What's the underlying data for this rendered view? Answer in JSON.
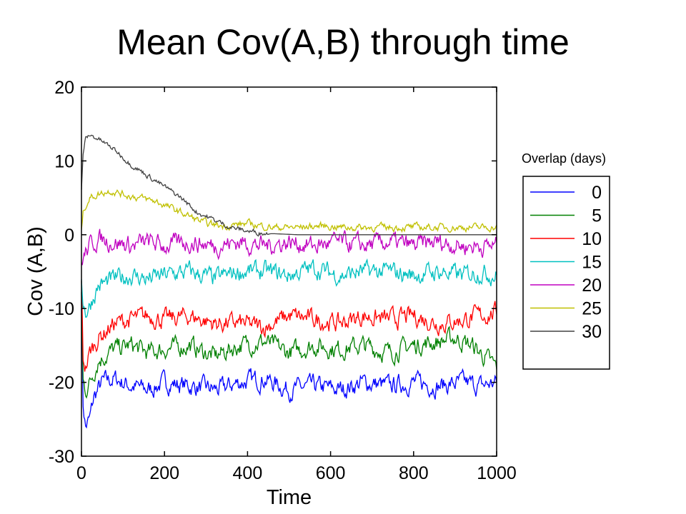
{
  "slide": {
    "title": "Mean Cov(A,B) through time"
  },
  "legend_title": "Overlap (days)",
  "chart_data": {
    "type": "line",
    "title": "",
    "xlabel": "Time",
    "ylabel": "Cov (A,B)",
    "xlim": [
      0,
      1000
    ],
    "ylim": [
      -30,
      20
    ],
    "xticks": [
      0,
      200,
      400,
      600,
      800,
      1000
    ],
    "yticks": [
      20,
      10,
      0,
      -10,
      -20,
      -30
    ],
    "grid": false,
    "legend_position": "outside-right",
    "series": [
      {
        "name": "0",
        "color": "#0000ff",
        "points": [
          [
            0,
            -9
          ],
          [
            4,
            -23
          ],
          [
            10,
            -26
          ],
          [
            20,
            -25
          ],
          [
            30,
            -22
          ],
          [
            50,
            -20
          ],
          [
            80,
            -19.5
          ],
          [
            120,
            -20.5
          ],
          [
            160,
            -21
          ],
          [
            200,
            -20
          ],
          [
            260,
            -20.5
          ],
          [
            330,
            -21
          ],
          [
            380,
            -20
          ],
          [
            440,
            -19.5
          ],
          [
            500,
            -21
          ],
          [
            560,
            -20.5
          ],
          [
            620,
            -21
          ],
          [
            680,
            -20
          ],
          [
            740,
            -20.5
          ],
          [
            800,
            -20
          ],
          [
            860,
            -20.5
          ],
          [
            920,
            -20
          ],
          [
            960,
            -20.5
          ],
          [
            1000,
            -20
          ]
        ]
      },
      {
        "name": "5",
        "color": "#008000",
        "points": [
          [
            0,
            -8
          ],
          [
            4,
            -20
          ],
          [
            10,
            -21
          ],
          [
            20,
            -20
          ],
          [
            40,
            -17
          ],
          [
            80,
            -15.5
          ],
          [
            120,
            -15
          ],
          [
            160,
            -16
          ],
          [
            200,
            -15.5
          ],
          [
            260,
            -15
          ],
          [
            320,
            -16.5
          ],
          [
            380,
            -15
          ],
          [
            440,
            -14.5
          ],
          [
            500,
            -16
          ],
          [
            560,
            -15
          ],
          [
            620,
            -15.5
          ],
          [
            680,
            -15
          ],
          [
            740,
            -16
          ],
          [
            800,
            -15
          ],
          [
            860,
            -14.5
          ],
          [
            900,
            -14
          ],
          [
            940,
            -15
          ],
          [
            980,
            -17
          ],
          [
            1000,
            -18
          ]
        ]
      },
      {
        "name": "10",
        "color": "#ff0000",
        "points": [
          [
            0,
            -7
          ],
          [
            4,
            -17
          ],
          [
            10,
            -18
          ],
          [
            20,
            -16
          ],
          [
            40,
            -14
          ],
          [
            80,
            -12
          ],
          [
            120,
            -11.5
          ],
          [
            160,
            -11
          ],
          [
            200,
            -11.5
          ],
          [
            260,
            -11
          ],
          [
            320,
            -12
          ],
          [
            380,
            -12
          ],
          [
            440,
            -12.5
          ],
          [
            500,
            -11
          ],
          [
            560,
            -11.5
          ],
          [
            620,
            -12
          ],
          [
            680,
            -11
          ],
          [
            740,
            -11.5
          ],
          [
            800,
            -11
          ],
          [
            860,
            -12
          ],
          [
            920,
            -11.5
          ],
          [
            960,
            -11
          ],
          [
            1000,
            -10.5
          ]
        ]
      },
      {
        "name": "15",
        "color": "#00c0c0",
        "points": [
          [
            0,
            -6
          ],
          [
            4,
            -9
          ],
          [
            10,
            -10.5
          ],
          [
            20,
            -9.5
          ],
          [
            40,
            -7
          ],
          [
            80,
            -6
          ],
          [
            120,
            -5.5
          ],
          [
            160,
            -6
          ],
          [
            200,
            -5.5
          ],
          [
            260,
            -5
          ],
          [
            320,
            -6
          ],
          [
            380,
            -5
          ],
          [
            440,
            -5
          ],
          [
            500,
            -5.5
          ],
          [
            560,
            -4.5
          ],
          [
            620,
            -5.5
          ],
          [
            680,
            -5
          ],
          [
            740,
            -5
          ],
          [
            800,
            -5.5
          ],
          [
            860,
            -5
          ],
          [
            920,
            -5.5
          ],
          [
            960,
            -5
          ],
          [
            1000,
            -5.5
          ]
        ]
      },
      {
        "name": "20",
        "color": "#c000c0",
        "points": [
          [
            0,
            -4
          ],
          [
            4,
            -3
          ],
          [
            10,
            -2.5
          ],
          [
            20,
            -1.5
          ],
          [
            40,
            -0.5
          ],
          [
            80,
            -1
          ],
          [
            120,
            -1.5
          ],
          [
            160,
            -1
          ],
          [
            200,
            -1.5
          ],
          [
            260,
            -1
          ],
          [
            320,
            -1.5
          ],
          [
            380,
            -1
          ],
          [
            440,
            -1.5
          ],
          [
            500,
            -1
          ],
          [
            560,
            -1.5
          ],
          [
            620,
            -1
          ],
          [
            680,
            -1.5
          ],
          [
            740,
            -1
          ],
          [
            800,
            -1.5
          ],
          [
            860,
            -1
          ],
          [
            920,
            -1.5
          ],
          [
            960,
            -1.5
          ],
          [
            1000,
            -1.5
          ]
        ]
      },
      {
        "name": "25",
        "color": "#c0c000",
        "points": [
          [
            0,
            1
          ],
          [
            4,
            3
          ],
          [
            10,
            4
          ],
          [
            20,
            5
          ],
          [
            40,
            5.5
          ],
          [
            70,
            6
          ],
          [
            100,
            5.5
          ],
          [
            140,
            5
          ],
          [
            180,
            4.5
          ],
          [
            220,
            3.5
          ],
          [
            260,
            2.5
          ],
          [
            300,
            1.5
          ],
          [
            340,
            1.2
          ],
          [
            400,
            1.5
          ],
          [
            460,
            1
          ],
          [
            520,
            1
          ],
          [
            580,
            1.2
          ],
          [
            640,
            1
          ],
          [
            700,
            1
          ],
          [
            760,
            1
          ],
          [
            820,
            1
          ],
          [
            880,
            1
          ],
          [
            940,
            1
          ],
          [
            1000,
            1
          ]
        ]
      },
      {
        "name": "30",
        "color": "#404040",
        "points": [
          [
            0,
            6
          ],
          [
            4,
            11
          ],
          [
            10,
            13
          ],
          [
            20,
            13.5
          ],
          [
            40,
            13
          ],
          [
            80,
            11.5
          ],
          [
            120,
            9.5
          ],
          [
            160,
            8
          ],
          [
            200,
            6.5
          ],
          [
            240,
            5
          ],
          [
            280,
            3
          ],
          [
            320,
            2
          ],
          [
            360,
            1
          ],
          [
            400,
            0.5
          ],
          [
            440,
            0.2
          ],
          [
            480,
            0.1
          ],
          [
            520,
            0
          ],
          [
            560,
            0
          ],
          [
            640,
            0
          ],
          [
            720,
            0
          ],
          [
            800,
            0
          ],
          [
            880,
            0
          ],
          [
            960,
            0
          ],
          [
            1000,
            0
          ]
        ]
      }
    ]
  }
}
